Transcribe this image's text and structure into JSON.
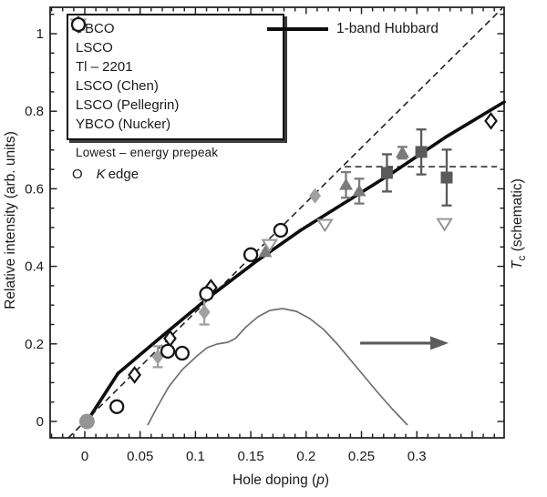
{
  "chart_data": {
    "type": "scatter",
    "title": "",
    "xlabel_parts": {
      "prefix": "Hole doping (",
      "italic": "p",
      "suffix": ")"
    },
    "ylabel": "Relative intensity (arb. units)",
    "right_label_parts": {
      "italic": "T",
      "sub": "c",
      "rest": " (schematic)"
    },
    "xlim": [
      -0.0313,
      0.3789
    ],
    "ylim": [
      -0.0423,
      1.0681
    ],
    "grid": false,
    "x_tick_labels": [
      [
        0,
        "0"
      ],
      [
        0.05,
        "0.05"
      ],
      [
        0.1,
        "0.1"
      ],
      [
        0.15,
        "0.15"
      ],
      [
        0.2,
        "0.2"
      ],
      [
        0.25,
        "0.25"
      ],
      [
        0.3,
        "0.3"
      ]
    ],
    "y_tick_labels": [
      [
        0,
        "0"
      ],
      [
        0.2,
        "0.2"
      ],
      [
        0.4,
        "0.4"
      ],
      [
        0.6,
        "0.6"
      ],
      [
        0.8,
        "0.8"
      ],
      [
        1,
        "1"
      ]
    ],
    "x_minor_step": 0.01,
    "y_minor_step": 0.05,
    "series": [
      {
        "id": "origin",
        "label": "",
        "marker": "circle-filled",
        "color": "#949494",
        "points": [
          [
            0.002,
            0.0
          ]
        ]
      },
      {
        "id": "ybco",
        "label": "YBCO",
        "marker": "diamond-filled",
        "color": "#a0a0a0",
        "points": [
          [
            0.066,
            0.167,
            0.027
          ],
          [
            0.108,
            0.282,
            0.032
          ],
          [
            0.208,
            0.582,
            0
          ]
        ]
      },
      {
        "id": "lsco",
        "label": "LSCO",
        "marker": "square-filled",
        "color": "#5a5a5a",
        "points": [
          [
            0.273,
            0.641,
            0.048
          ],
          [
            0.304,
            0.695,
            0.058
          ],
          [
            0.327,
            0.629,
            0.072
          ]
        ]
      },
      {
        "id": "tl2201",
        "label": "Tl – 2201",
        "marker": "triangle-up-filled",
        "color": "#7b7b7b",
        "points": [
          [
            0.163,
            0.437,
            0
          ],
          [
            0.236,
            0.61,
            0.033
          ],
          [
            0.248,
            0.594,
            0.032
          ],
          [
            0.287,
            0.693,
            0.015
          ]
        ]
      },
      {
        "id": "lsco_chen",
        "label": "LSCO (Chen)",
        "marker": "diamond-open",
        "color": "#161616",
        "points": [
          [
            0.045,
            0.12
          ],
          [
            0.077,
            0.214
          ],
          [
            0.114,
            0.345
          ],
          [
            0.367,
            0.775
          ]
        ]
      },
      {
        "id": "lsco_pellegrin",
        "label": "LSCO (Pellegrin)",
        "marker": "triangle-down-open",
        "color": "#969696",
        "points": [
          [
            0.167,
            0.455
          ],
          [
            0.217,
            0.507
          ],
          [
            0.325,
            0.509
          ]
        ]
      },
      {
        "id": "ybco_nucker",
        "label": "YBCO (Nucker)",
        "marker": "circle-open",
        "color": "#161616",
        "points": [
          [
            0.029,
            0.038
          ],
          [
            0.075,
            0.181
          ],
          [
            0.088,
            0.176
          ],
          [
            0.11,
            0.329
          ],
          [
            0.15,
            0.43
          ],
          [
            0.177,
            0.493
          ]
        ]
      }
    ],
    "legend_order": [
      "ybco",
      "lsco",
      "tl2201",
      "lsco_chen",
      "lsco_pellegrin",
      "ybco_nucker"
    ],
    "hubbard_line": {
      "label": "1-band Hubbard",
      "color": "#0d0d0d",
      "points": [
        [
          0.002,
          0.0
        ],
        [
          0.03,
          0.124
        ],
        [
          0.072,
          0.225
        ],
        [
          0.113,
          0.322
        ],
        [
          0.154,
          0.411
        ],
        [
          0.195,
          0.493
        ],
        [
          0.236,
          0.566
        ],
        [
          0.278,
          0.641
        ],
        [
          0.327,
          0.735
        ],
        [
          0.379,
          0.824
        ]
      ]
    },
    "dashed_diagonal": {
      "points": [
        [
          -0.0148,
          -0.0423
        ],
        [
          0.3772,
          1.0657
        ]
      ]
    },
    "dashed_horizontal": {
      "y": 0.657,
      "x": [
        0.2348,
        0.3724
      ]
    },
    "tc_dome": {
      "color": "#6f6f6f",
      "points": [
        [
          0.0568,
          -0.0094
        ],
        [
          0.0651,
          0.0352
        ],
        [
          0.0758,
          0.0892
        ],
        [
          0.0881,
          0.1338
        ],
        [
          0.1005,
          0.1667
        ],
        [
          0.1104,
          0.1901
        ],
        [
          0.1194,
          0.1995
        ],
        [
          0.1293,
          0.2042
        ],
        [
          0.1359,
          0.2136
        ],
        [
          0.1458,
          0.2441
        ],
        [
          0.1565,
          0.27
        ],
        [
          0.1672,
          0.2864
        ],
        [
          0.1787,
          0.2911
        ],
        [
          0.1911,
          0.284
        ],
        [
          0.2034,
          0.2653
        ],
        [
          0.2158,
          0.2371
        ],
        [
          0.2282,
          0.1995
        ],
        [
          0.2405,
          0.1573
        ],
        [
          0.2529,
          0.115
        ],
        [
          0.2652,
          0.0728
        ],
        [
          0.2776,
          0.0329
        ],
        [
          0.2916,
          -0.0094
        ]
      ]
    },
    "arrow": {
      "color": "#5c5c5c",
      "y": 0.202,
      "x": [
        0.2488,
        0.3287
      ]
    },
    "annotations": {
      "prepeak": "Lowest – energy prepeak",
      "edge_o": "O",
      "edge_k": "K",
      "edge_rest": "edge"
    }
  }
}
